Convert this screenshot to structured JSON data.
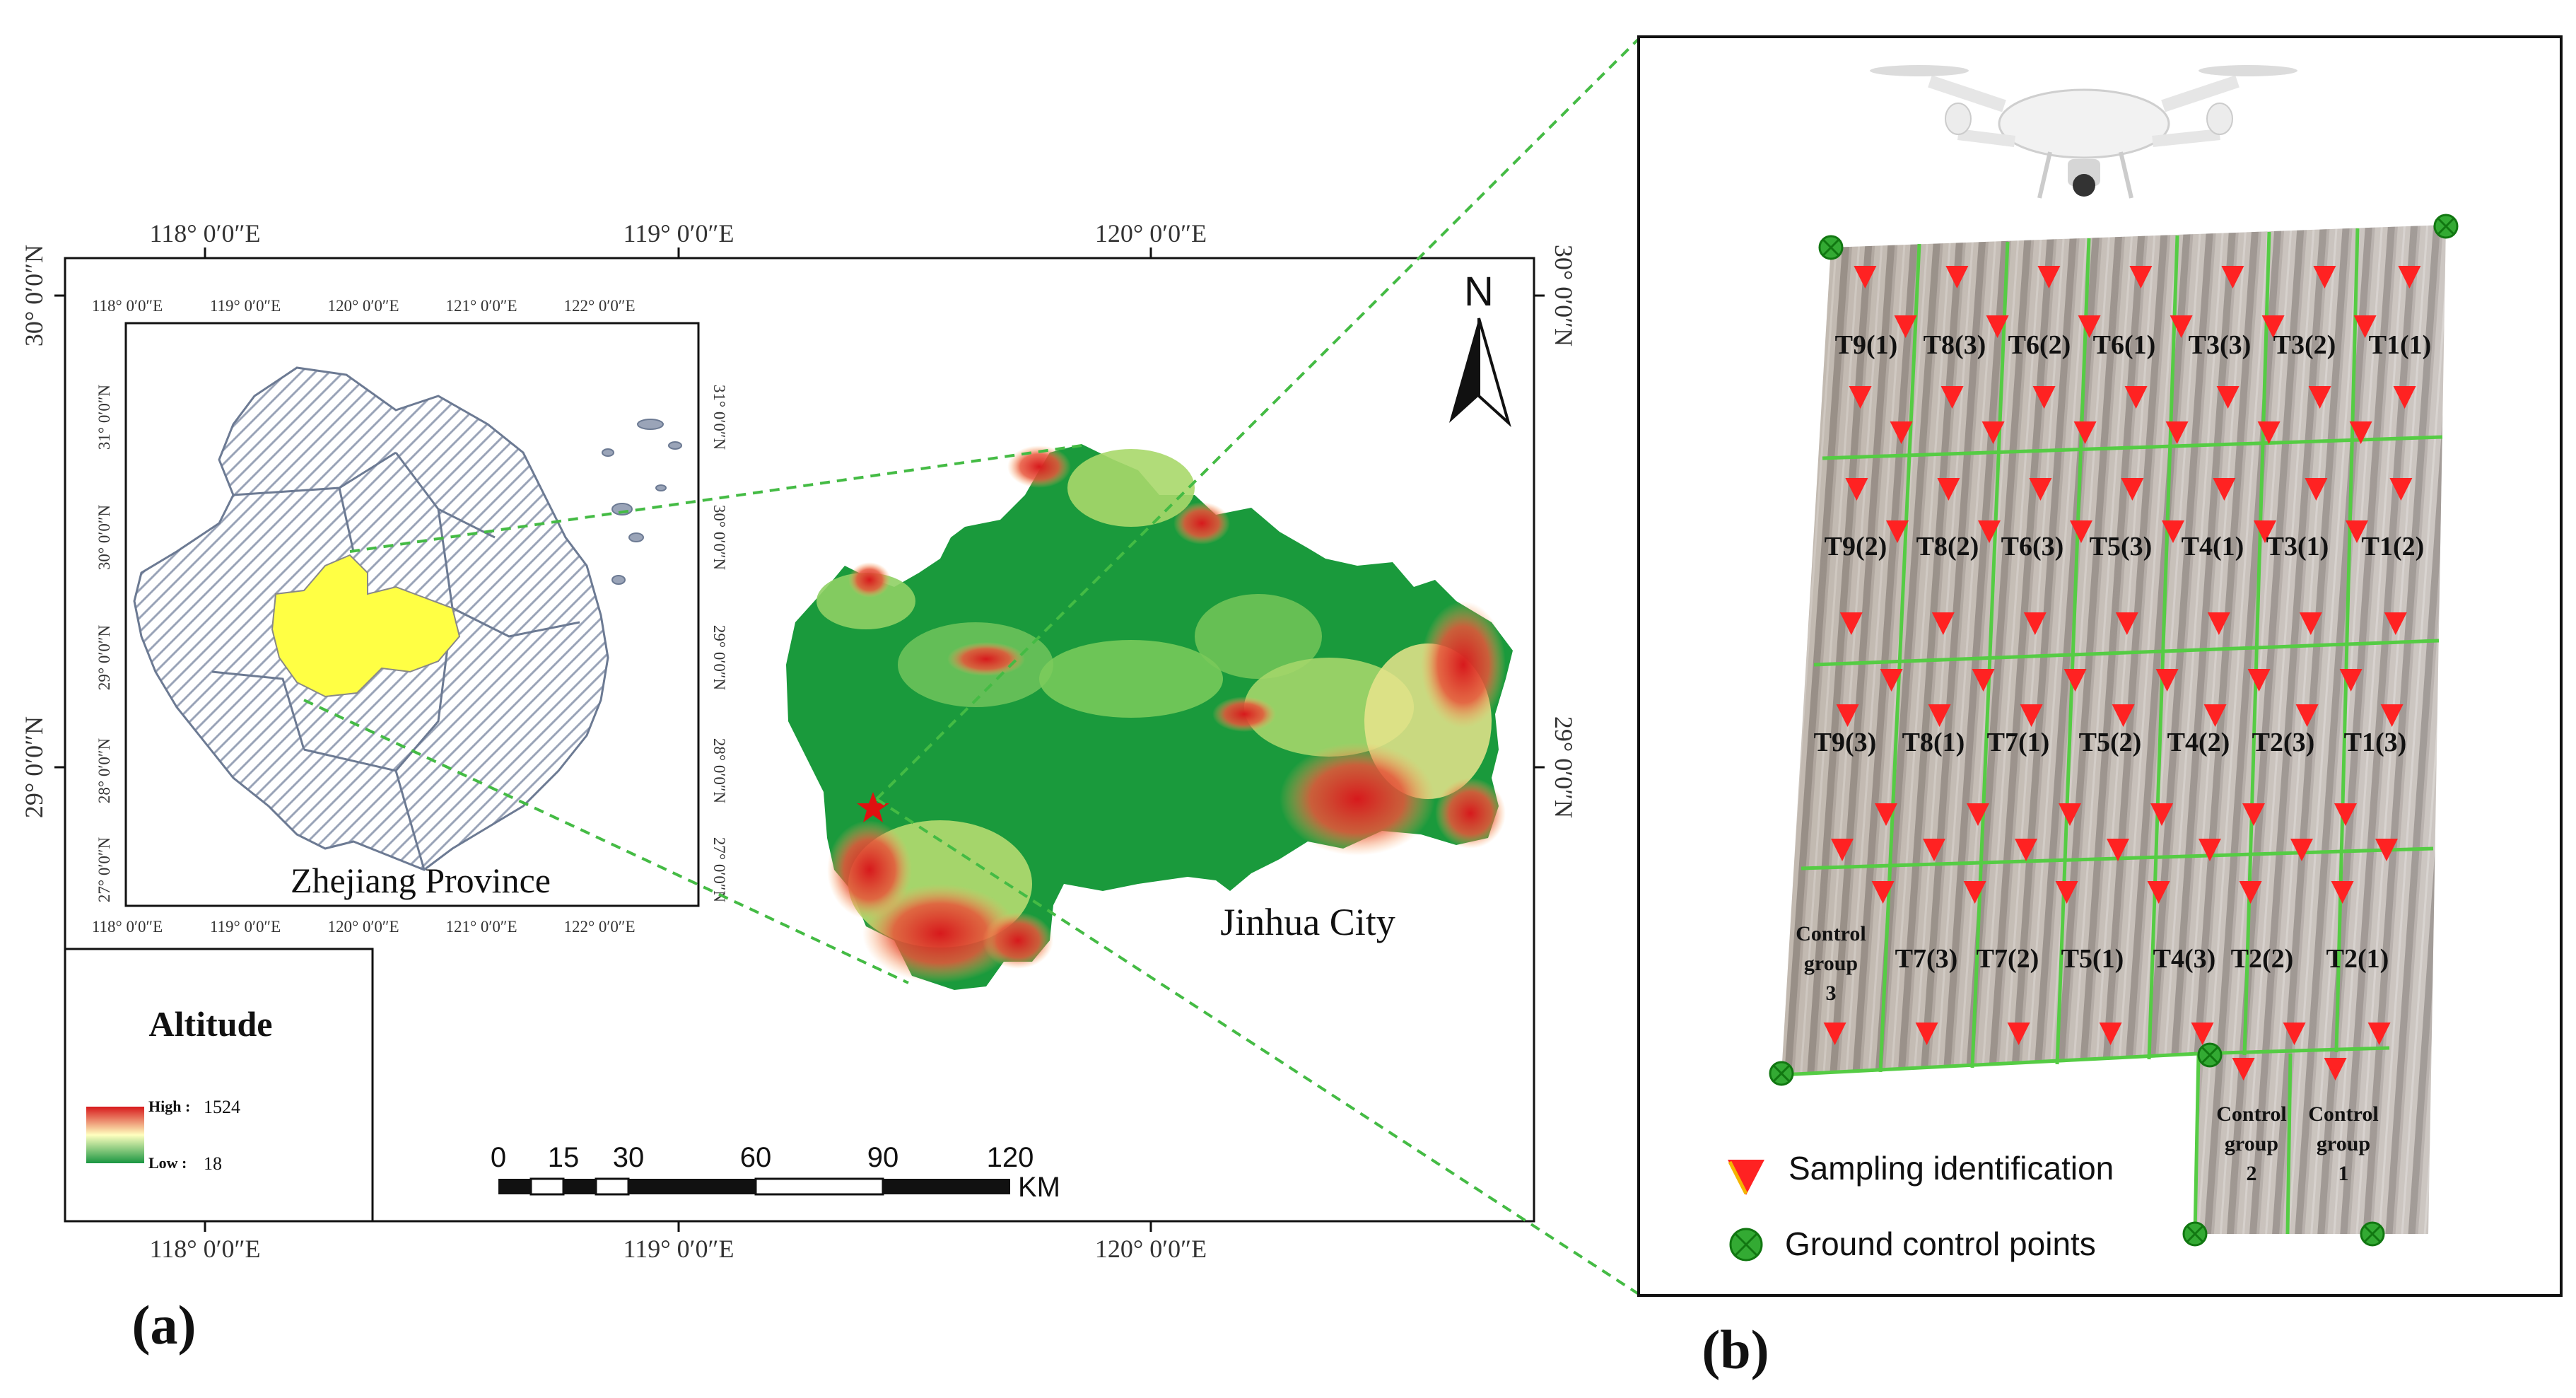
{
  "panel_a": {
    "label": "(a)",
    "top_lon_labels": [
      "118° 0′0″E",
      "119° 0′0″E",
      "120° 0′0″E"
    ],
    "bottom_lon_labels": [
      "118° 0′0″E",
      "119° 0′0″E",
      "120° 0′0″E"
    ],
    "left_lat_labels": [
      "30° 0′0″N",
      "29° 0′0″N"
    ],
    "right_lat_labels": [
      "30° 0′0″N",
      "29° 0′0″N"
    ],
    "north_label": "N",
    "inset": {
      "title": "Zhejiang Province",
      "top_lon": [
        "118° 0′0″E",
        "119° 0′0″E",
        "120° 0′0″E",
        "121° 0′0″E",
        "122° 0′0″E"
      ],
      "bottom_lon": [
        "118° 0′0″E",
        "119° 0′0″E",
        "120° 0′0″E",
        "121° 0′0″E",
        "122° 0′0″E"
      ],
      "left_lat": [
        "31° 0′0″N",
        "30° 0′0″N",
        "29° 0′0″N",
        "28° 0′0″N",
        "27° 0′0″N"
      ],
      "right_lat": [
        "31° 0′0″N",
        "30° 0′0″N",
        "29° 0′0″N",
        "28° 0′0″N",
        "27° 0′0″N"
      ]
    },
    "city_label": "Jinhua City",
    "legend": {
      "title": "Altitude",
      "high_label": "High :",
      "high_value": "1524",
      "low_label": "Low :",
      "low_value": "18"
    },
    "scalebar": {
      "ticks": [
        "0",
        "15",
        "30",
        "60",
        "90",
        "120"
      ],
      "unit": "KM"
    },
    "colors": {
      "high": "#d7191c",
      "mid": "#f5e9a6",
      "low": "#1a9641",
      "province": "#ffff44",
      "connector": "#44bb44"
    }
  },
  "panel_b": {
    "label": "(b)",
    "plots": [
      "T9(1)",
      "T8(3)",
      "T6(2)",
      "T6(1)",
      "T3(3)",
      "T3(2)",
      "T1(1)",
      "T9(2)",
      "T8(2)",
      "T6(3)",
      "T5(3)",
      "T4(1)",
      "T3(1)",
      "T1(2)",
      "T9(3)",
      "T8(1)",
      "T7(1)",
      "T5(2)",
      "T4(2)",
      "T2(3)",
      "T1(3)",
      "T7(3)",
      "T7(2)",
      "T5(1)",
      "T4(3)",
      "T2(2)",
      "T2(1)"
    ],
    "control_groups": [
      [
        "Control",
        "group",
        "3"
      ],
      [
        "Control",
        "group",
        "2"
      ],
      [
        "Control",
        "group",
        "1"
      ]
    ],
    "legend": {
      "sampling": "Sampling identification",
      "gcp": "Ground control points"
    },
    "colors": {
      "marker": "#ff2222",
      "gcp": "#33aa33",
      "grid": "#55cc44"
    }
  }
}
